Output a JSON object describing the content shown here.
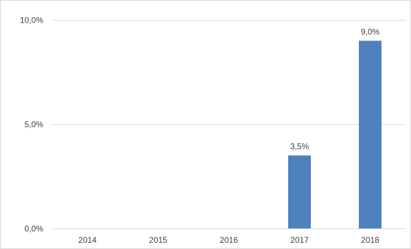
{
  "chart_data": {
    "type": "bar",
    "categories": [
      "2014",
      "2015",
      "2016",
      "2017",
      "2018"
    ],
    "values": [
      0,
      0,
      0,
      3.5,
      9.0
    ],
    "data_labels": [
      "",
      "",
      "",
      "3,5%",
      "9,0%"
    ],
    "y_ticks": [
      {
        "value": 0,
        "label": "0,0%"
      },
      {
        "value": 5,
        "label": "5,0%"
      },
      {
        "value": 10,
        "label": "10,0%"
      }
    ],
    "title": "",
    "xlabel": "",
    "ylabel": "",
    "ylim": [
      0,
      10
    ],
    "grid": true,
    "legend": "none",
    "colors": {
      "bar": "#4f81bd",
      "grid": "#d9d9d9",
      "text": "#404040"
    }
  }
}
